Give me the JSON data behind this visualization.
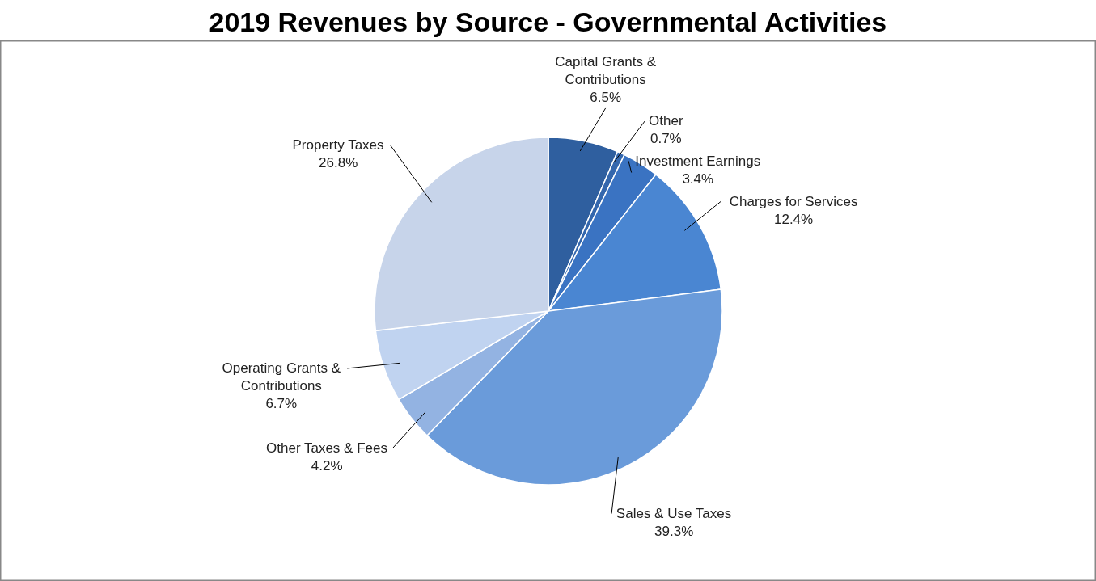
{
  "chart_data": {
    "type": "pie",
    "title": "2019 Revenues by Source - Governmental Activities",
    "categories": [
      "Capital Grants & Contributions",
      "Other",
      "Investment Earnings",
      "Charges for Services",
      "Sales & Use Taxes",
      "Other Taxes & Fees",
      "Operating Grants & Contributions",
      "Property Taxes"
    ],
    "values": [
      6.5,
      0.7,
      3.4,
      12.4,
      39.3,
      4.2,
      6.7,
      26.8
    ],
    "value_labels": [
      "6.5%",
      "0.7%",
      "3.4%",
      "12.4%",
      "39.3%",
      "4.2%",
      "6.7%",
      "26.8%"
    ],
    "colors": [
      "#2f5f9f",
      "#3467ad",
      "#3a73c2",
      "#4a86d2",
      "#6a9bda",
      "#93b3e2",
      "#c0d3f0",
      "#c7d4ea"
    ]
  }
}
